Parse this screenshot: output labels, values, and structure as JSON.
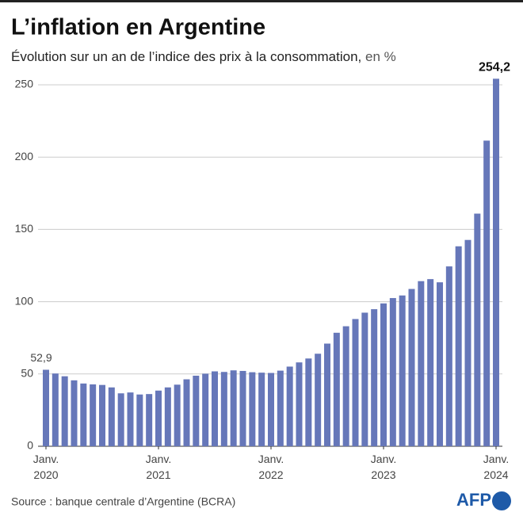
{
  "chart_data": {
    "type": "bar",
    "title": "L’inflation en Argentine",
    "subtitle": "Évolution sur un an de l’indice des prix à la consommation,",
    "subtitle_unit": "en %",
    "source": "Source : banque centrale d’Argentine (BCRA)",
    "logo": "AFP",
    "categories": [
      "Janv. 2020",
      null,
      null,
      null,
      null,
      null,
      null,
      null,
      null,
      null,
      null,
      null,
      "Janv. 2021",
      null,
      null,
      null,
      null,
      null,
      null,
      null,
      null,
      null,
      null,
      null,
      "Janv. 2022",
      null,
      null,
      null,
      null,
      null,
      null,
      null,
      null,
      null,
      null,
      null,
      "Janv. 2023",
      null,
      null,
      null,
      null,
      null,
      null,
      null,
      null,
      null,
      null,
      null,
      "Janv. 2024"
    ],
    "values": [
      52.9,
      50.3,
      48.4,
      45.6,
      43.4,
      42.8,
      42.4,
      40.7,
      36.6,
      37.2,
      35.8,
      36.1,
      38.5,
      40.7,
      42.6,
      46.3,
      48.8,
      50.2,
      51.8,
      51.4,
      52.5,
      52.1,
      51.2,
      50.9,
      50.7,
      52.3,
      55.1,
      58.0,
      60.7,
      64.0,
      71.0,
      78.5,
      83.0,
      88.0,
      92.4,
      94.8,
      98.8,
      102.5,
      104.3,
      108.8,
      114.2,
      115.6,
      113.4,
      124.4,
      138.3,
      142.7,
      160.9,
      211.4,
      254.2
    ],
    "value_labels": [
      "52,9",
      null,
      null,
      null,
      null,
      null,
      null,
      null,
      null,
      null,
      null,
      null,
      null,
      null,
      null,
      null,
      null,
      null,
      null,
      null,
      null,
      null,
      null,
      null,
      null,
      null,
      null,
      null,
      null,
      null,
      null,
      null,
      null,
      null,
      null,
      null,
      null,
      null,
      null,
      null,
      null,
      null,
      null,
      null,
      null,
      null,
      null,
      null,
      "254,2"
    ],
    "color": "#6677b9",
    "ylim": [
      0,
      260
    ],
    "yticks": [
      0,
      50,
      100,
      150,
      200,
      250
    ],
    "grid": true
  }
}
